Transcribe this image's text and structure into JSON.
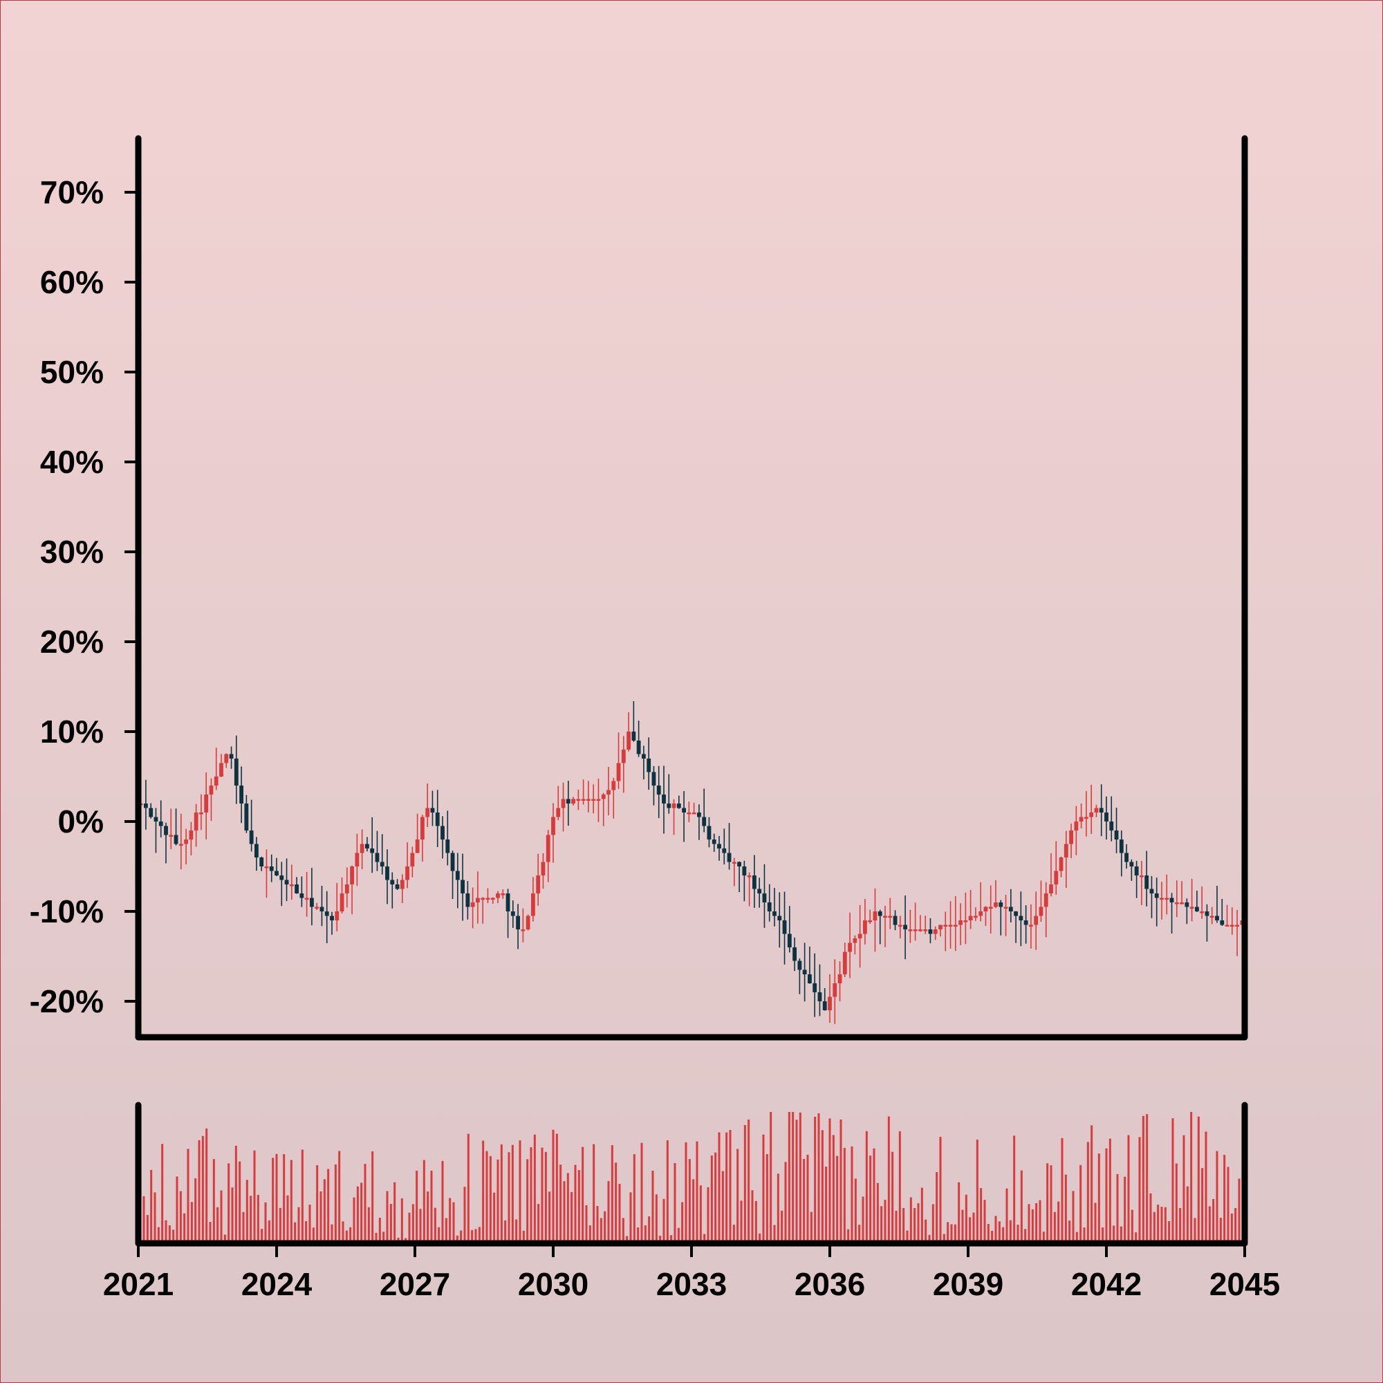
{
  "chart_data": {
    "type": "candlestick",
    "title": "",
    "xlabel": "",
    "ylabel": "",
    "x_range": [
      2021,
      2045
    ],
    "y_range_percent": [
      -24,
      76
    ],
    "x_ticks": [
      "2021",
      "2024",
      "2027",
      "2030",
      "2033",
      "2036",
      "2039",
      "2042",
      "2045"
    ],
    "y_ticks": [
      "-20%",
      "-10%",
      "0%",
      "10%",
      "20%",
      "30%",
      "40%",
      "50%",
      "60%",
      "70%"
    ],
    "grid": false,
    "legend": "none",
    "colors": {
      "up": "#d83b3b",
      "down": "#0d3340",
      "volume": "#d83b3b",
      "axis": "#000000"
    },
    "price_keypoints": [
      {
        "year": 2021.0,
        "close_pct": 2
      },
      {
        "year": 2021.4,
        "close_pct": 0
      },
      {
        "year": 2021.9,
        "close_pct": -3
      },
      {
        "year": 2022.5,
        "close_pct": 3
      },
      {
        "year": 2022.95,
        "close_pct": 8
      },
      {
        "year": 2023.5,
        "close_pct": -4
      },
      {
        "year": 2024.0,
        "close_pct": -6
      },
      {
        "year": 2024.7,
        "close_pct": -9
      },
      {
        "year": 2025.2,
        "close_pct": -11
      },
      {
        "year": 2025.9,
        "close_pct": -2
      },
      {
        "year": 2026.6,
        "close_pct": -8
      },
      {
        "year": 2027.3,
        "close_pct": 2
      },
      {
        "year": 2028.1,
        "close_pct": -9
      },
      {
        "year": 2028.9,
        "close_pct": -8
      },
      {
        "year": 2029.3,
        "close_pct": -13
      },
      {
        "year": 2030.1,
        "close_pct": 2
      },
      {
        "year": 2031.2,
        "close_pct": 3
      },
      {
        "year": 2031.65,
        "close_pct": 10
      },
      {
        "year": 2032.4,
        "close_pct": 2
      },
      {
        "year": 2033.1,
        "close_pct": 1
      },
      {
        "year": 2033.5,
        "close_pct": -3
      },
      {
        "year": 2034.2,
        "close_pct": -6
      },
      {
        "year": 2034.9,
        "close_pct": -11
      },
      {
        "year": 2035.2,
        "close_pct": -15
      },
      {
        "year": 2035.9,
        "close_pct": -21
      },
      {
        "year": 2036.4,
        "close_pct": -14
      },
      {
        "year": 2037.0,
        "close_pct": -10
      },
      {
        "year": 2037.6,
        "close_pct": -12
      },
      {
        "year": 2038.3,
        "close_pct": -12
      },
      {
        "year": 2039.0,
        "close_pct": -11
      },
      {
        "year": 2039.6,
        "close_pct": -9
      },
      {
        "year": 2040.4,
        "close_pct": -12
      },
      {
        "year": 2041.4,
        "close_pct": 1
      },
      {
        "year": 2041.9,
        "close_pct": 1
      },
      {
        "year": 2042.4,
        "close_pct": -4
      },
      {
        "year": 2043.0,
        "close_pct": -8
      },
      {
        "year": 2043.6,
        "close_pct": -9
      },
      {
        "year": 2044.3,
        "close_pct": -11
      },
      {
        "year": 2045.0,
        "close_pct": -11
      }
    ],
    "volume_keypoints": [
      {
        "year": 2021.0,
        "level": 0.35
      },
      {
        "year": 2022.5,
        "level": 0.45
      },
      {
        "year": 2024.0,
        "level": 0.35
      },
      {
        "year": 2025.5,
        "level": 0.4
      },
      {
        "year": 2027.0,
        "level": 0.35
      },
      {
        "year": 2028.7,
        "level": 0.45
      },
      {
        "year": 2030.5,
        "level": 0.45
      },
      {
        "year": 2032.5,
        "level": 0.4
      },
      {
        "year": 2034.0,
        "level": 0.45
      },
      {
        "year": 2035.0,
        "level": 0.6
      },
      {
        "year": 2036.5,
        "level": 0.45
      },
      {
        "year": 2037.5,
        "level": 0.55
      },
      {
        "year": 2039.0,
        "level": 0.4
      },
      {
        "year": 2040.5,
        "level": 0.45
      },
      {
        "year": 2042.0,
        "level": 0.45
      },
      {
        "year": 2043.5,
        "level": 0.6
      },
      {
        "year": 2045.0,
        "level": 0.3
      }
    ]
  }
}
